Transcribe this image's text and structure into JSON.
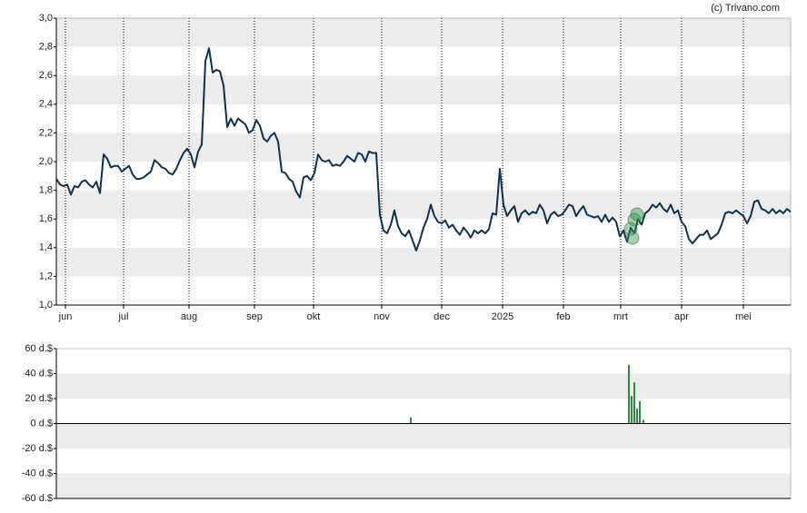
{
  "source": "(c) Trivano.com",
  "chart_data": [
    {
      "type": "line",
      "color": "#0d3350",
      "xlim": [
        0,
        202
      ],
      "xticks": [
        {
          "value": 2.5,
          "label": "jun"
        },
        {
          "value": 18.5,
          "label": "jul"
        },
        {
          "value": 36.5,
          "label": "aug"
        },
        {
          "value": 54.5,
          "label": "sep"
        },
        {
          "value": 70.75,
          "label": "okt"
        },
        {
          "value": 89.5,
          "label": "nov"
        },
        {
          "value": 106,
          "label": "dec"
        },
        {
          "value": 122.75,
          "label": "2025"
        },
        {
          "value": 139.5,
          "label": "feb"
        },
        {
          "value": 155.25,
          "label": "mrt"
        },
        {
          "value": 172,
          "label": "apr"
        },
        {
          "value": 189,
          "label": "mei"
        }
      ],
      "ylim": [
        1.0,
        3.0
      ],
      "yticks": [
        {
          "value": 1.0,
          "label": "1,0"
        },
        {
          "value": 1.2,
          "label": "1,2"
        },
        {
          "value": 1.4,
          "label": "1,4"
        },
        {
          "value": 1.6,
          "label": "1,6"
        },
        {
          "value": 1.8,
          "label": "1,8"
        },
        {
          "value": 2.0,
          "label": "2,0"
        },
        {
          "value": 2.2,
          "label": "2,2"
        },
        {
          "value": 2.4,
          "label": "2,4"
        },
        {
          "value": 2.6,
          "label": "2,6"
        },
        {
          "value": 2.8,
          "label": "2,8"
        },
        {
          "value": 3.0,
          "label": "3,0"
        }
      ],
      "x": [
        0,
        1,
        2,
        3,
        4,
        5,
        6,
        7,
        8,
        9,
        10,
        11,
        12,
        13,
        14,
        15,
        16,
        17,
        18,
        19,
        20,
        21,
        22,
        23,
        24,
        25,
        26,
        27,
        28,
        29,
        30,
        31,
        32,
        33,
        34,
        35,
        36,
        37,
        38,
        39,
        40,
        41,
        42,
        43,
        44,
        45,
        46,
        47,
        48,
        49,
        50,
        51,
        52,
        53,
        54,
        55,
        56,
        57,
        58,
        59,
        60,
        61,
        62,
        63,
        64,
        65,
        66,
        67,
        68,
        69,
        70,
        71,
        72,
        73,
        74,
        75,
        76,
        77,
        78,
        79,
        80,
        81,
        82,
        83,
        84,
        85,
        86,
        87,
        88,
        89,
        90,
        91,
        92,
        93,
        94,
        95,
        96,
        97,
        98,
        99,
        100,
        101,
        102,
        103,
        104,
        105,
        106,
        107,
        108,
        109,
        110,
        111,
        112,
        113,
        114,
        115,
        116,
        117,
        118,
        119,
        120,
        121,
        122,
        123,
        124,
        125,
        126,
        127,
        128,
        129,
        130,
        131,
        132,
        133,
        134,
        135,
        136,
        137,
        138,
        139,
        140,
        141,
        142,
        143,
        144,
        145,
        146,
        147,
        148,
        149,
        150,
        151,
        152,
        153,
        154,
        155,
        156,
        157,
        158,
        159,
        160,
        161,
        162,
        163,
        164,
        165,
        166,
        167,
        168,
        169,
        170,
        171,
        172,
        173,
        174,
        175,
        176,
        177,
        178,
        179,
        180,
        181,
        182,
        183,
        184,
        185,
        186,
        187,
        188,
        189,
        190,
        191,
        192,
        193,
        194,
        195,
        196,
        197,
        198,
        199,
        200,
        201,
        202
      ],
      "values": [
        1.88,
        1.84,
        1.83,
        1.84,
        1.77,
        1.83,
        1.82,
        1.86,
        1.87,
        1.84,
        1.82,
        1.86,
        1.78,
        2.05,
        2.02,
        1.96,
        1.97,
        1.97,
        1.93,
        1.95,
        1.97,
        1.91,
        1.88,
        1.88,
        1.89,
        1.91,
        1.93,
        2.01,
        1.99,
        1.96,
        1.95,
        1.92,
        1.91,
        1.95,
        2.01,
        2.06,
        2.09,
        2.05,
        1.96,
        2.07,
        2.12,
        2.7,
        2.79,
        2.62,
        2.64,
        2.63,
        2.53,
        2.24,
        2.3,
        2.25,
        2.3,
        2.28,
        2.26,
        2.2,
        2.22,
        2.29,
        2.25,
        2.16,
        2.14,
        2.18,
        2.2,
        2.14,
        1.93,
        1.92,
        1.88,
        1.86,
        1.79,
        1.75,
        1.89,
        1.9,
        1.87,
        1.92,
        2.05,
        2.01,
        2.0,
        2.01,
        1.97,
        1.98,
        1.97,
        2.0,
        2.04,
        2.02,
        2.0,
        2.06,
        2.05,
        2.0,
        2.07,
        2.06,
        2.06,
        1.63,
        1.52,
        1.5,
        1.56,
        1.66,
        1.55,
        1.5,
        1.48,
        1.52,
        1.45,
        1.38,
        1.45,
        1.54,
        1.6,
        1.7,
        1.62,
        1.58,
        1.57,
        1.59,
        1.54,
        1.56,
        1.52,
        1.49,
        1.54,
        1.51,
        1.47,
        1.52,
        1.5,
        1.52,
        1.5,
        1.53,
        1.64,
        1.63,
        1.95,
        1.7,
        1.62,
        1.66,
        1.69,
        1.58,
        1.64,
        1.66,
        1.63,
        1.65,
        1.64,
        1.7,
        1.66,
        1.57,
        1.63,
        1.65,
        1.62,
        1.63,
        1.66,
        1.7,
        1.69,
        1.62,
        1.66,
        1.69,
        1.63,
        1.62,
        1.61,
        1.62,
        1.58,
        1.63,
        1.58,
        1.61,
        1.58,
        1.48,
        1.52,
        1.44,
        1.54,
        1.5,
        1.6,
        1.56,
        1.64,
        1.66,
        1.7,
        1.68,
        1.71,
        1.67,
        1.65,
        1.7,
        1.64,
        1.66,
        1.58,
        1.55,
        1.46,
        1.43,
        1.46,
        1.49,
        1.49,
        1.52,
        1.46,
        1.48,
        1.5,
        1.56,
        1.64,
        1.65,
        1.64,
        1.66,
        1.64,
        1.62,
        1.57,
        1.62,
        1.72,
        1.73,
        1.67,
        1.66,
        1.64,
        1.67,
        1.64,
        1.66,
        1.64,
        1.67,
        1.65
      ]
    },
    {
      "type": "bar",
      "color": "#2e8b3e",
      "xlim": [
        0,
        202
      ],
      "ylim": [
        -60,
        60
      ],
      "yticks": [
        {
          "value": 60,
          "label": "60 d.$"
        },
        {
          "value": 40,
          "label": "40 d.$"
        },
        {
          "value": 20,
          "label": "20 d.$"
        },
        {
          "value": 0,
          "label": "0 d.$"
        },
        {
          "value": -20,
          "label": "-20 d.$"
        },
        {
          "value": -40,
          "label": "-40 d.$"
        },
        {
          "value": -60,
          "label": "-60 d.$"
        }
      ],
      "x": [
        97.5,
        157.5,
        158.25,
        159,
        159.75,
        160.5,
        161.5
      ],
      "values": [
        5,
        47,
        22,
        33,
        12,
        18,
        3
      ]
    }
  ]
}
